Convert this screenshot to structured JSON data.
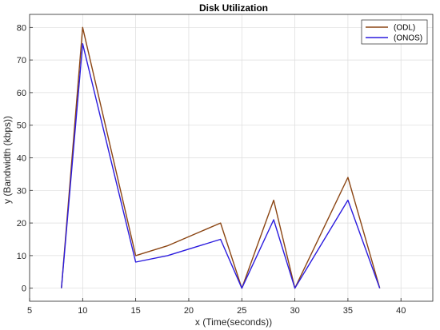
{
  "chart_data": {
    "type": "line",
    "title": "Disk  Utilization",
    "xlabel": "x (Time(seconds))",
    "ylabel": "y (Bandwidth (kbps))",
    "xlim": [
      5,
      43
    ],
    "ylim": [
      -4,
      84
    ],
    "xticks": [
      5,
      10,
      15,
      20,
      25,
      30,
      35,
      40
    ],
    "yticks": [
      0,
      10,
      20,
      30,
      40,
      50,
      60,
      70,
      80
    ],
    "grid": true,
    "legend_position": "top-right",
    "series": [
      {
        "name": "(ODL)",
        "color": "#8B4513",
        "x": [
          8,
          10,
          15,
          18,
          23,
          25,
          28,
          30,
          35,
          38
        ],
        "y": [
          0,
          80,
          10,
          13,
          20,
          0,
          27,
          0,
          34,
          0
        ]
      },
      {
        "name": "(ONOS)",
        "color": "#2B1BDE",
        "x": [
          8,
          10,
          15,
          18,
          23,
          25,
          28,
          30,
          35,
          38
        ],
        "y": [
          0,
          75,
          8,
          10,
          15,
          0,
          21,
          0,
          27,
          0
        ]
      }
    ]
  }
}
